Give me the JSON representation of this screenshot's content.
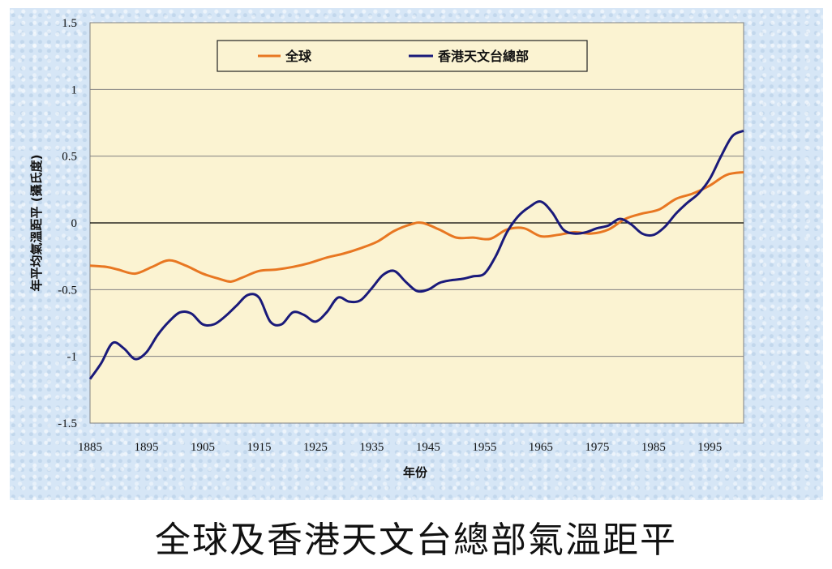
{
  "caption": "全球及香港天文台總部氣溫距平",
  "chart_data": {
    "type": "line",
    "xlabel": "年份",
    "ylabel": "年平均氣溫距平 (攝氏度)",
    "xlim": [
      1885,
      2001
    ],
    "ylim": [
      -1.5,
      1.5
    ],
    "xticks": [
      "1885",
      "1895",
      "1905",
      "1915",
      "1925",
      "1935",
      "1945",
      "1955",
      "1965",
      "1975",
      "1985",
      "1995"
    ],
    "yticks": [
      "1.5",
      "1",
      "0.5",
      "0",
      "-0.5",
      "-1",
      "-1.5"
    ],
    "grid": true,
    "legend_position": "top",
    "series": [
      {
        "name": "全球",
        "color": "#e87722",
        "points": [
          [
            1885,
            -0.32
          ],
          [
            1888,
            -0.33
          ],
          [
            1890,
            -0.35
          ],
          [
            1893,
            -0.38
          ],
          [
            1896,
            -0.33
          ],
          [
            1899,
            -0.28
          ],
          [
            1902,
            -0.32
          ],
          [
            1905,
            -0.38
          ],
          [
            1908,
            -0.42
          ],
          [
            1910,
            -0.44
          ],
          [
            1912,
            -0.41
          ],
          [
            1915,
            -0.36
          ],
          [
            1918,
            -0.35
          ],
          [
            1921,
            -0.33
          ],
          [
            1924,
            -0.3
          ],
          [
            1927,
            -0.26
          ],
          [
            1930,
            -0.23
          ],
          [
            1933,
            -0.19
          ],
          [
            1936,
            -0.14
          ],
          [
            1939,
            -0.06
          ],
          [
            1942,
            -0.01
          ],
          [
            1944,
            0.0
          ],
          [
            1947,
            -0.05
          ],
          [
            1950,
            -0.11
          ],
          [
            1953,
            -0.11
          ],
          [
            1956,
            -0.12
          ],
          [
            1959,
            -0.05
          ],
          [
            1962,
            -0.04
          ],
          [
            1965,
            -0.1
          ],
          [
            1968,
            -0.09
          ],
          [
            1971,
            -0.07
          ],
          [
            1974,
            -0.08
          ],
          [
            1977,
            -0.05
          ],
          [
            1980,
            0.03
          ],
          [
            1983,
            0.07
          ],
          [
            1986,
            0.1
          ],
          [
            1989,
            0.18
          ],
          [
            1992,
            0.22
          ],
          [
            1995,
            0.28
          ],
          [
            1998,
            0.36
          ],
          [
            2001,
            0.38
          ]
        ]
      },
      {
        "name": "香港天文台總部",
        "color": "#1a1a7a",
        "points": [
          [
            1885,
            -1.17
          ],
          [
            1887,
            -1.05
          ],
          [
            1889,
            -0.9
          ],
          [
            1891,
            -0.94
          ],
          [
            1893,
            -1.02
          ],
          [
            1895,
            -0.97
          ],
          [
            1897,
            -0.84
          ],
          [
            1899,
            -0.74
          ],
          [
            1901,
            -0.67
          ],
          [
            1903,
            -0.68
          ],
          [
            1905,
            -0.76
          ],
          [
            1907,
            -0.76
          ],
          [
            1909,
            -0.7
          ],
          [
            1911,
            -0.62
          ],
          [
            1913,
            -0.54
          ],
          [
            1915,
            -0.56
          ],
          [
            1917,
            -0.74
          ],
          [
            1919,
            -0.76
          ],
          [
            1921,
            -0.67
          ],
          [
            1923,
            -0.69
          ],
          [
            1925,
            -0.74
          ],
          [
            1927,
            -0.67
          ],
          [
            1929,
            -0.56
          ],
          [
            1931,
            -0.59
          ],
          [
            1933,
            -0.58
          ],
          [
            1935,
            -0.49
          ],
          [
            1937,
            -0.39
          ],
          [
            1939,
            -0.36
          ],
          [
            1941,
            -0.44
          ],
          [
            1943,
            -0.51
          ],
          [
            1945,
            -0.5
          ],
          [
            1947,
            -0.45
          ],
          [
            1949,
            -0.43
          ],
          [
            1951,
            -0.42
          ],
          [
            1953,
            -0.4
          ],
          [
            1955,
            -0.38
          ],
          [
            1957,
            -0.25
          ],
          [
            1959,
            -0.07
          ],
          [
            1961,
            0.05
          ],
          [
            1963,
            0.12
          ],
          [
            1965,
            0.16
          ],
          [
            1967,
            0.08
          ],
          [
            1969,
            -0.05
          ],
          [
            1971,
            -0.08
          ],
          [
            1973,
            -0.07
          ],
          [
            1975,
            -0.04
          ],
          [
            1977,
            -0.02
          ],
          [
            1979,
            0.03
          ],
          [
            1981,
            -0.01
          ],
          [
            1983,
            -0.08
          ],
          [
            1985,
            -0.09
          ],
          [
            1987,
            -0.03
          ],
          [
            1989,
            0.07
          ],
          [
            1991,
            0.15
          ],
          [
            1993,
            0.22
          ],
          [
            1995,
            0.33
          ],
          [
            1997,
            0.5
          ],
          [
            1999,
            0.65
          ],
          [
            2001,
            0.69
          ]
        ]
      }
    ]
  }
}
